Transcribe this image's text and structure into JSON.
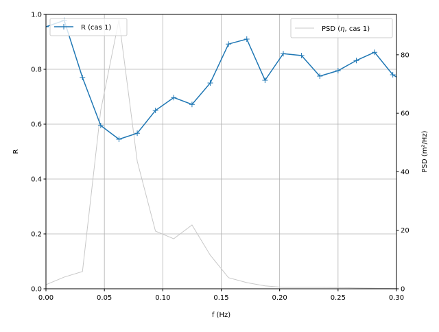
{
  "chart_data": {
    "type": "line",
    "xlabel": "f (Hz)",
    "ylabel": "R",
    "ylabel_right": "PSD (m²/Hz)",
    "xlim": [
      0,
      0.3
    ],
    "ylim": [
      0,
      1.0
    ],
    "ylim_right": [
      0,
      93.8
    ],
    "grid": true,
    "x_ticks": [
      "0.00",
      "0.05",
      "0.10",
      "0.15",
      "0.20",
      "0.25",
      "0.30"
    ],
    "y_ticks": [
      "0.0",
      "0.2",
      "0.4",
      "0.6",
      "0.8",
      "1.0"
    ],
    "y_right_ticks": [
      "0",
      "20",
      "40",
      "60",
      "80"
    ],
    "x": [
      0,
      0.015625,
      0.03125,
      0.046875,
      0.0625,
      0.078125,
      0.09375,
      0.109375,
      0.125,
      0.140625,
      0.15625,
      0.171875,
      0.1875,
      0.203125,
      0.21875,
      0.234375,
      0.25,
      0.265625,
      0.28125,
      0.296875,
      0.3125
    ],
    "series": [
      {
        "name": "R (cas 1)",
        "axis": "left",
        "color": "#1f77b4",
        "marker": "+",
        "values": [
          0.955,
          0.978,
          0.77,
          0.595,
          0.545,
          0.567,
          0.65,
          0.697,
          0.672,
          0.75,
          0.892,
          0.91,
          0.76,
          0.857,
          0.85,
          0.775,
          0.795,
          0.832,
          0.862,
          0.78,
          0.74
        ]
      },
      {
        "name": "PSD (η, cas 1)",
        "axis": "right",
        "color": "#c8c8c8",
        "marker": "",
        "values": [
          1.4,
          4.0,
          5.9,
          61,
          92,
          43.6,
          19.7,
          17.1,
          21.8,
          11.5,
          3.8,
          2.1,
          1.0,
          0.5,
          0.5,
          0.5,
          0.4,
          0.3,
          0.2,
          0.1,
          0.1
        ]
      }
    ],
    "legend_left": {
      "label": "R (cas 1)",
      "placement": "upper-left"
    },
    "legend_right": {
      "label_prefix": "PSD (",
      "label_symbol": "η",
      "label_suffix": ", cas 1)",
      "placement": "upper-right"
    }
  }
}
